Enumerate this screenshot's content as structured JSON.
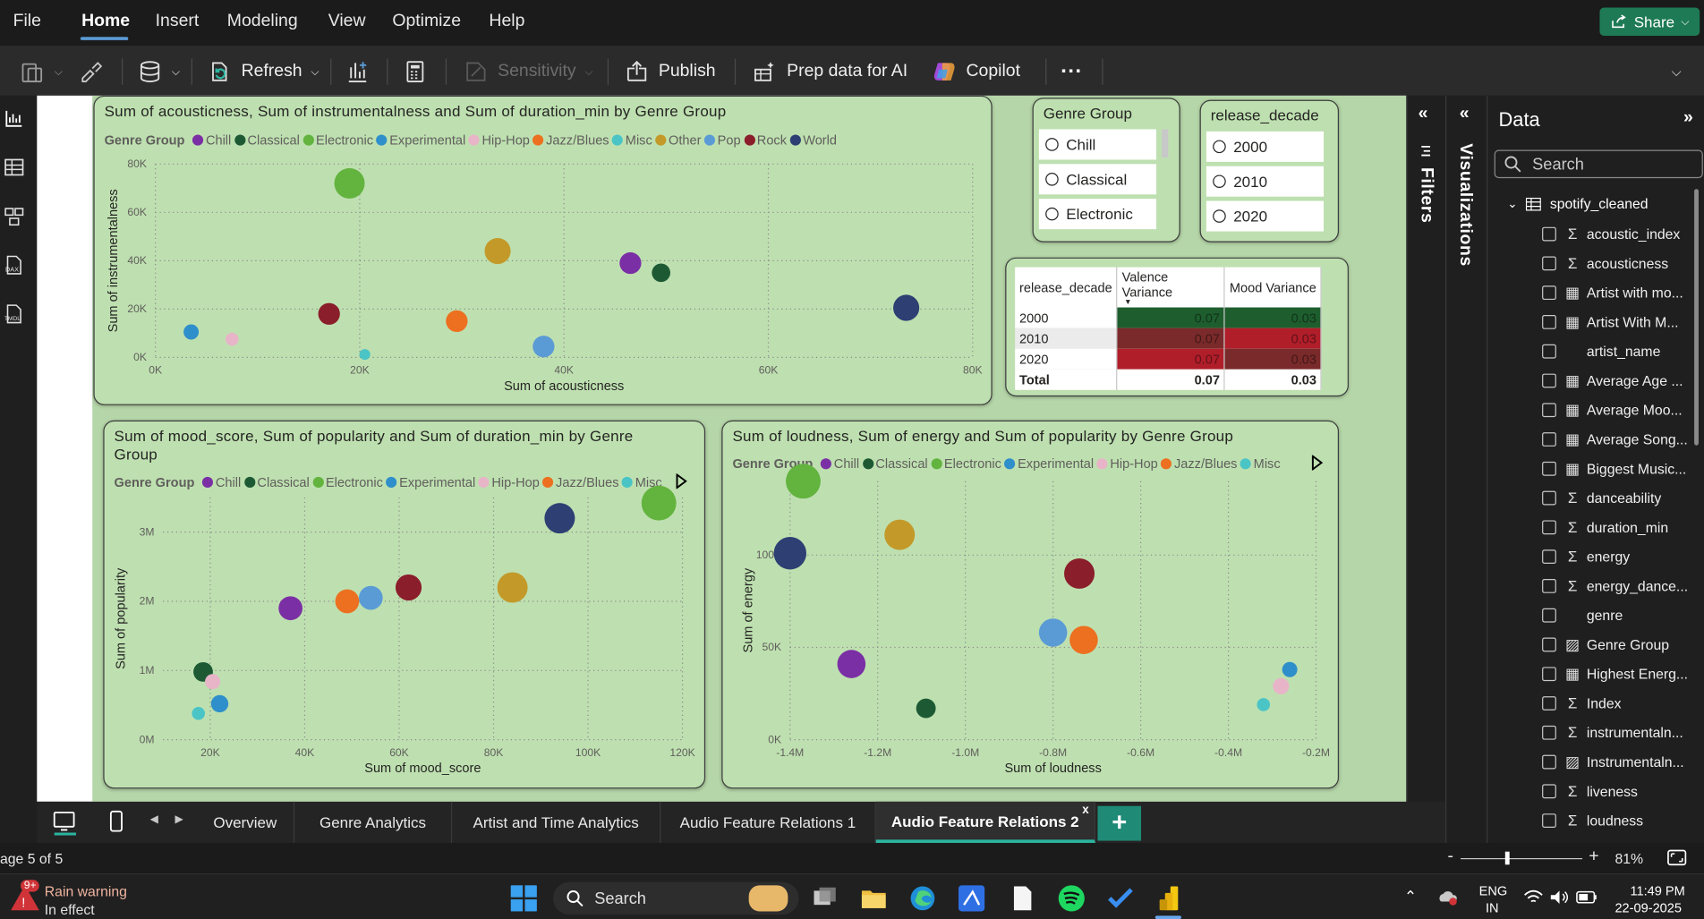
{
  "menu": {
    "items": [
      "File",
      "Home",
      "Insert",
      "Modeling",
      "View",
      "Optimize",
      "Help"
    ],
    "share_label": "Share"
  },
  "ribbon": {
    "refresh": "Refresh",
    "sensitivity": "Sensitivity",
    "publish": "Publish",
    "prep": "Prep data for AI",
    "copilot": "Copilot",
    "more": "···"
  },
  "colors": {
    "Chill": "#7b2fa5",
    "Classical": "#1d5a34",
    "Electronic": "#63b33f",
    "Experimental": "#2f8fca",
    "Hip-Hop": "#e8b4c8",
    "Jazz/Blues": "#ec7020",
    "Misc": "#4bc4c6",
    "Other": "#c39a2a",
    "Pop": "#5b9bd5",
    "Rock": "#8b1e2b",
    "World": "#2d3f73"
  },
  "visual1": {
    "title": "Sum of acousticness, Sum of instrumentalness and Sum of duration_min by Genre Group",
    "legend_title": "Genre Group",
    "legend": [
      "Chill",
      "Classical",
      "Electronic",
      "Experimental",
      "Hip-Hop",
      "Jazz/Blues",
      "Misc",
      "Other",
      "Pop",
      "Rock",
      "World"
    ]
  },
  "visual2": {
    "title": "Sum of mood_score, Sum of popularity and Sum of duration_min by Genre Group",
    "legend_title": "Genre Group",
    "legend": [
      "Chill",
      "Classical",
      "Electronic",
      "Experimental",
      "Hip-Hop",
      "Jazz/Blues",
      "Misc"
    ]
  },
  "visual3": {
    "title": "Sum of loudness, Sum of energy and Sum of popularity by Genre Group",
    "legend_title": "Genre Group",
    "legend": [
      "Chill",
      "Classical",
      "Electronic",
      "Experimental",
      "Hip-Hop",
      "Jazz/Blues",
      "Misc"
    ]
  },
  "chart_data": [
    {
      "type": "scatter",
      "xlabel": "Sum of acousticness",
      "ylabel": "Sum of instrumentalness",
      "xlim": [
        0,
        80000
      ],
      "ylim": [
        0,
        80000
      ],
      "xticks": [
        "0K",
        "20K",
        "40K",
        "60K",
        "80K"
      ],
      "yticks": [
        "0K",
        "20K",
        "40K",
        "60K",
        "80K"
      ],
      "grid": true,
      "legend_position": "top-left",
      "points": [
        {
          "group": "Electronic",
          "x": 19000,
          "y": 72000,
          "size": 28
        },
        {
          "group": "Other",
          "x": 33500,
          "y": 44000,
          "size": 24
        },
        {
          "group": "Chill",
          "x": 46500,
          "y": 39000,
          "size": 20
        },
        {
          "group": "Classical",
          "x": 49500,
          "y": 35000,
          "size": 17
        },
        {
          "group": "World",
          "x": 73500,
          "y": 20500,
          "size": 24
        },
        {
          "group": "Rock",
          "x": 17000,
          "y": 18000,
          "size": 20
        },
        {
          "group": "Jazz/Blues",
          "x": 29500,
          "y": 15000,
          "size": 20
        },
        {
          "group": "Experimental",
          "x": 3500,
          "y": 10500,
          "size": 14
        },
        {
          "group": "Hip-Hop",
          "x": 7500,
          "y": 7500,
          "size": 12
        },
        {
          "group": "Pop",
          "x": 38000,
          "y": 4500,
          "size": 20
        },
        {
          "group": "Misc",
          "x": 20500,
          "y": 1200,
          "size": 10
        }
      ]
    },
    {
      "type": "scatter",
      "xlabel": "Sum of mood_score",
      "ylabel": "Sum of popularity",
      "xlim": [
        10000,
        120000
      ],
      "ylim": [
        0,
        3500000
      ],
      "xticks": [
        "20K",
        "40K",
        "60K",
        "80K",
        "100K",
        "120K"
      ],
      "yticks": [
        "0M",
        "1M",
        "2M",
        "3M"
      ],
      "grid": true,
      "legend_position": "top-left",
      "points": [
        {
          "group": "Electronic",
          "x": 115000,
          "y": 3420000,
          "size": 32
        },
        {
          "group": "World",
          "x": 94000,
          "y": 3200000,
          "size": 28
        },
        {
          "group": "Other",
          "x": 84000,
          "y": 2200000,
          "size": 28
        },
        {
          "group": "Rock",
          "x": 62000,
          "y": 2200000,
          "size": 24
        },
        {
          "group": "Pop",
          "x": 54000,
          "y": 2050000,
          "size": 22
        },
        {
          "group": "Jazz/Blues",
          "x": 49000,
          "y": 2000000,
          "size": 22
        },
        {
          "group": "Chill",
          "x": 37000,
          "y": 1900000,
          "size": 22
        },
        {
          "group": "Classical",
          "x": 18500,
          "y": 980000,
          "size": 18
        },
        {
          "group": "Hip-Hop",
          "x": 20500,
          "y": 840000,
          "size": 14
        },
        {
          "group": "Experimental",
          "x": 22000,
          "y": 520000,
          "size": 16
        },
        {
          "group": "Misc",
          "x": 17500,
          "y": 380000,
          "size": 12
        }
      ]
    },
    {
      "type": "scatter",
      "xlabel": "Sum of loudness",
      "ylabel": "Sum of energy",
      "xlim": [
        -1400000,
        -200000
      ],
      "ylim": [
        0,
        140000
      ],
      "xticks": [
        "-1.4M",
        "-1.2M",
        "-1.0M",
        "-0.8M",
        "-0.6M",
        "-0.4M",
        "-0.2M"
      ],
      "yticks": [
        "0K",
        "50K",
        "100K"
      ],
      "grid": true,
      "legend_position": "top-left",
      "points": [
        {
          "group": "Electronic",
          "x": -1370000,
          "y": 140000,
          "size": 32
        },
        {
          "group": "World",
          "x": -1400000,
          "y": 101000,
          "size": 30
        },
        {
          "group": "Other",
          "x": -1150000,
          "y": 111000,
          "size": 28
        },
        {
          "group": "Rock",
          "x": -740000,
          "y": 90000,
          "size": 28
        },
        {
          "group": "Pop",
          "x": -800000,
          "y": 58000,
          "size": 26
        },
        {
          "group": "Jazz/Blues",
          "x": -730000,
          "y": 54000,
          "size": 26
        },
        {
          "group": "Chill",
          "x": -1260000,
          "y": 41000,
          "size": 26
        },
        {
          "group": "Classical",
          "x": -1090000,
          "y": 17000,
          "size": 18
        },
        {
          "group": "Experimental",
          "x": -260000,
          "y": 38000,
          "size": 14
        },
        {
          "group": "Hip-Hop",
          "x": -280000,
          "y": 29000,
          "size": 15
        },
        {
          "group": "Misc",
          "x": -320000,
          "y": 19000,
          "size": 12
        }
      ]
    }
  ],
  "slicer_genre": {
    "title": "Genre Group",
    "options": [
      "Chill",
      "Classical",
      "Electronic"
    ]
  },
  "slicer_decade": {
    "title": "release_decade",
    "options": [
      "2000",
      "2010",
      "2020"
    ]
  },
  "variance_table": {
    "headers": [
      "release_decade",
      "Valence Variance",
      "Mood Variance"
    ],
    "rows": [
      {
        "decade": "2000",
        "valence": "0.07",
        "mood": "0.03",
        "valence_color": "#1e5e2e",
        "mood_color": "#1e5e2e"
      },
      {
        "decade": "2010",
        "valence": "0.07",
        "mood": "0.03",
        "valence_color": "#7a2a2a",
        "mood_color": "#b01e2a"
      },
      {
        "decade": "2020",
        "valence": "0.07",
        "mood": "0.03",
        "valence_color": "#b01e2a",
        "mood_color": "#7a2a2a"
      }
    ],
    "total_label": "Total",
    "total_valence": "0.07",
    "total_mood": "0.03"
  },
  "panes": {
    "filters": "Filters",
    "visualizations": "Visualizations",
    "data_title": "Data",
    "search_placeholder": "Search",
    "table_name": "spotify_cleaned"
  },
  "fields": [
    {
      "name": "acoustic_index",
      "kind": "sigma"
    },
    {
      "name": "acousticness",
      "kind": "sigma"
    },
    {
      "name": "Artist with mo...",
      "kind": "calc"
    },
    {
      "name": "Artist With M...",
      "kind": "calc"
    },
    {
      "name": "artist_name",
      "kind": "none"
    },
    {
      "name": "Average Age ...",
      "kind": "calc"
    },
    {
      "name": "Average Moo...",
      "kind": "calc"
    },
    {
      "name": "Average Song...",
      "kind": "calc"
    },
    {
      "name": "Biggest Music...",
      "kind": "calc"
    },
    {
      "name": "danceability",
      "kind": "sigma"
    },
    {
      "name": "duration_min",
      "kind": "sigma"
    },
    {
      "name": "energy",
      "kind": "sigma"
    },
    {
      "name": "energy_dance...",
      "kind": "sigma"
    },
    {
      "name": "genre",
      "kind": "none"
    },
    {
      "name": "Genre Group",
      "kind": "calccol"
    },
    {
      "name": "Highest Energ...",
      "kind": "calc"
    },
    {
      "name": "Index",
      "kind": "sigma"
    },
    {
      "name": "instrumentaln...",
      "kind": "sigma"
    },
    {
      "name": "Instrumentaln...",
      "kind": "calccol"
    },
    {
      "name": "liveness",
      "kind": "sigma"
    },
    {
      "name": "loudness",
      "kind": "sigma"
    }
  ],
  "page_tabs": [
    "Overview",
    "Genre Analytics",
    "Artist and Time Analytics",
    "Audio Feature Relations 1",
    "Audio Feature Relations 2"
  ],
  "active_tab": "Audio Feature Relations 2",
  "status": {
    "page": "age 5 of 5",
    "zoom": "81%"
  },
  "taskbar": {
    "weather_title": "Rain warning",
    "weather_sub": "In effect",
    "weather_badge": "9+",
    "search": "Search",
    "lang1": "ENG",
    "lang2": "IN",
    "time": "11:49 PM",
    "date": "22-09-2025"
  }
}
